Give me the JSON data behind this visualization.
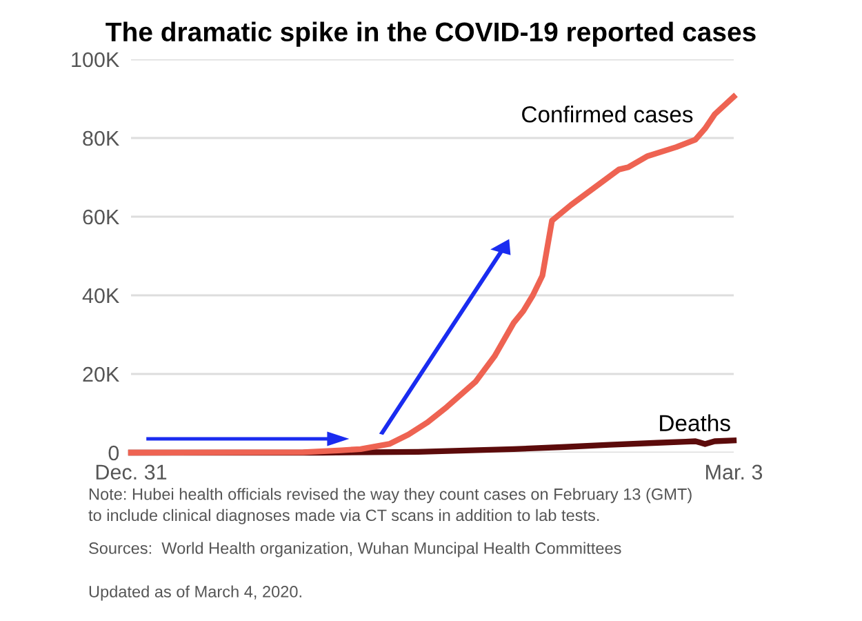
{
  "chart_data": {
    "type": "line",
    "title": "The dramatic spike in the COVID-19 reported cases",
    "series": [
      {
        "name": "Confirmed cases",
        "color": "#ee6352",
        "x": [
          "2019-12-31",
          "2020-01-18",
          "2020-01-22",
          "2020-01-24",
          "2020-01-27",
          "2020-01-29",
          "2020-01-31",
          "2020-02-02",
          "2020-02-05",
          "2020-02-07",
          "2020-02-09",
          "2020-02-10",
          "2020-02-11",
          "2020-02-12",
          "2020-02-13",
          "2020-02-15",
          "2020-02-18",
          "2020-02-20",
          "2020-02-21",
          "2020-02-23",
          "2020-02-26",
          "2020-02-28",
          "2020-02-29",
          "2020-03-01",
          "2020-03-03"
        ],
        "values": [
          0,
          100,
          600,
          900,
          2200,
          4600,
          7700,
          11600,
          18000,
          24500,
          33000,
          36000,
          40000,
          45000,
          59000,
          63000,
          68400,
          72000,
          72600,
          75400,
          77700,
          79600,
          82400,
          86000,
          90500
        ]
      },
      {
        "name": "Deaths",
        "color": "#5c0b0b",
        "x": [
          "2019-12-31",
          "2020-01-20",
          "2020-01-30",
          "2020-02-09",
          "2020-02-14",
          "2020-02-19",
          "2020-02-24",
          "2020-02-27",
          "2020-02-28",
          "2020-02-29",
          "2020-03-01",
          "2020-03-03"
        ],
        "values": [
          0,
          0,
          200,
          900,
          1400,
          2000,
          2500,
          2800,
          2900,
          2200,
          2900,
          3100
        ]
      }
    ],
    "xlim": [
      "2019-12-31",
      "2020-03-03"
    ],
    "xticks": [
      {
        "value": "2019-12-31",
        "label": "Dec. 31"
      },
      {
        "value": "2020-03-03",
        "label": "Mar. 3"
      }
    ],
    "ylim": [
      0,
      100000
    ],
    "yticks": [
      0,
      {
        "value": 20000,
        "label": "20K"
      },
      {
        "value": 40000,
        "label": "40K"
      },
      {
        "value": 60000,
        "label": "60K"
      },
      {
        "value": 80000,
        "label": "80K"
      },
      {
        "value": 100000,
        "label": "100K"
      }
    ],
    "grid": "y",
    "legend": false,
    "marker": "none",
    "line_style": "solid",
    "annotations": [
      "Note: Hubei health officials revised the way they count cases on February 13 (GMT)\nto include clinical diagnoses made via CT scans in addition to lab tests.",
      "Sources:  World Health organization, Wuhan Muncipal Health Committees",
      "Updated as of March 4, 2020."
    ]
  }
}
